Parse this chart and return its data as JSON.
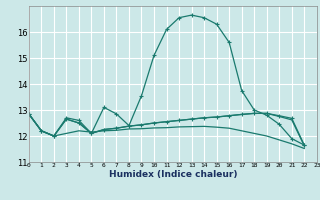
{
  "xlabel": "Humidex (Indice chaleur)",
  "xlim": [
    0,
    23
  ],
  "ylim": [
    11,
    17
  ],
  "yticks": [
    11,
    12,
    13,
    14,
    15,
    16
  ],
  "xticks": [
    0,
    1,
    2,
    3,
    4,
    5,
    6,
    7,
    8,
    9,
    10,
    11,
    12,
    13,
    14,
    15,
    16,
    17,
    18,
    19,
    20,
    21,
    22,
    23
  ],
  "bg_color": "#cce8e8",
  "grid_color": "#ffffff",
  "line_color": "#1a7a6e",
  "lines": [
    {
      "x": [
        0,
        1,
        2,
        3,
        4,
        5,
        6,
        7,
        8,
        9,
        10,
        11,
        12,
        13,
        14,
        15,
        16,
        17,
        18,
        19,
        20,
        21,
        22
      ],
      "y": [
        12.85,
        12.2,
        12.0,
        12.7,
        12.6,
        12.1,
        13.1,
        12.85,
        12.4,
        13.55,
        15.1,
        16.1,
        16.55,
        16.65,
        16.55,
        16.3,
        15.6,
        13.75,
        13.0,
        12.8,
        12.45,
        11.9,
        11.65
      ],
      "marker": "+"
    },
    {
      "x": [
        0,
        1,
        2,
        3,
        4,
        5,
        6,
        7,
        8,
        9,
        10,
        11,
        12,
        13,
        14,
        15,
        16,
        17,
        18,
        19,
        20,
        21,
        22
      ],
      "y": [
        12.85,
        12.2,
        12.0,
        12.65,
        12.5,
        12.1,
        12.25,
        12.3,
        12.38,
        12.43,
        12.5,
        12.55,
        12.6,
        12.65,
        12.7,
        12.73,
        12.78,
        12.83,
        12.87,
        12.87,
        12.78,
        12.68,
        11.65
      ],
      "marker": "+"
    },
    {
      "x": [
        0,
        1,
        2,
        3,
        4,
        5,
        6,
        7,
        8,
        9,
        10,
        11,
        12,
        13,
        14,
        15,
        16,
        17,
        18,
        19,
        20,
        21,
        22
      ],
      "y": [
        12.85,
        12.2,
        12.0,
        12.1,
        12.2,
        12.15,
        12.2,
        12.22,
        12.27,
        12.28,
        12.31,
        12.32,
        12.35,
        12.36,
        12.37,
        12.34,
        12.3,
        12.2,
        12.1,
        12.0,
        11.85,
        11.7,
        11.52
      ],
      "marker": null
    },
    {
      "x": [
        0,
        1,
        2,
        3,
        4,
        5,
        6,
        7,
        8,
        9,
        10,
        11,
        12,
        13,
        14,
        15,
        16,
        17,
        18,
        19,
        20,
        21,
        22
      ],
      "y": [
        12.85,
        12.2,
        12.0,
        12.65,
        12.5,
        12.1,
        12.25,
        12.3,
        12.38,
        12.43,
        12.5,
        12.55,
        12.6,
        12.65,
        12.7,
        12.73,
        12.78,
        12.83,
        12.87,
        12.87,
        12.75,
        12.62,
        11.62
      ],
      "marker": null
    }
  ]
}
